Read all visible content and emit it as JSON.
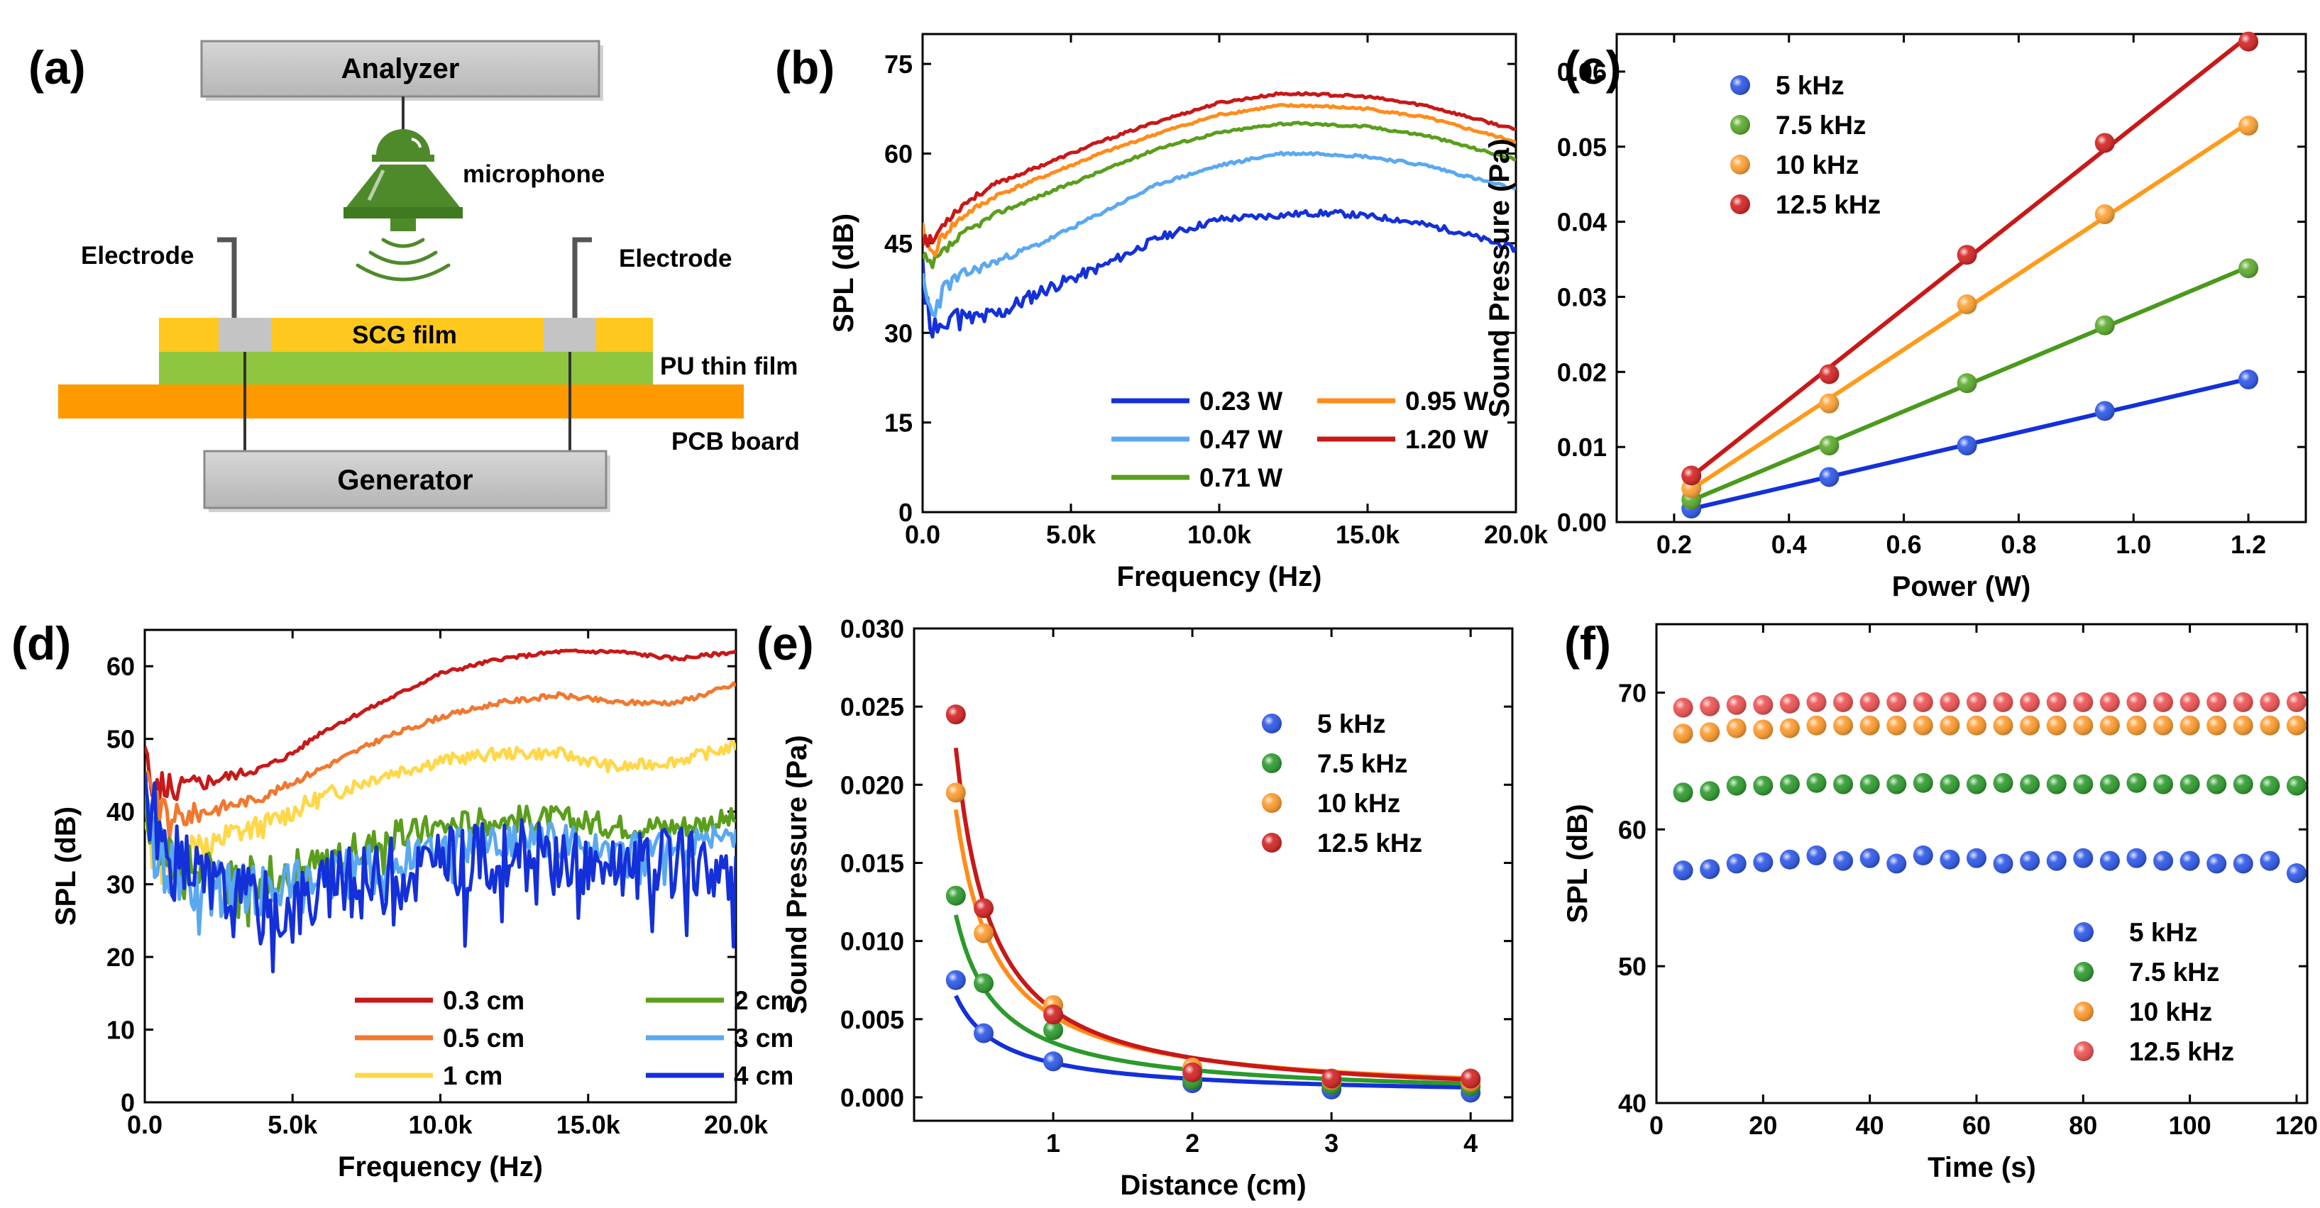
{
  "colors": {
    "blue_dark": "#1430d8",
    "blue_light": "#5aa8f0",
    "green": "#5a9e1c",
    "orange": "#ff8c1a",
    "red": "#c81818",
    "dot_blue": "#2a55e8",
    "dot_green": "#2a9a2a",
    "dot_orange": "#ff9a2a",
    "dot_red": "#d42020",
    "diag_gray": "#c4c4c4",
    "diag_yellow": "#ffc81e",
    "diag_green": "#8ec63f",
    "diag_orange": "#ff9900",
    "mic_green": "#4f8a2a"
  },
  "diagram": {
    "label": "(a)",
    "analyzer": "Analyzer",
    "microphone": "microphone",
    "electrode_left": "Electrode",
    "electrode_right": "Electrode",
    "scg_film": "SCG film",
    "pu_film": "PU thin film",
    "pcb": "PCB board",
    "generator": "Generator"
  },
  "chart_data": [
    {
      "id": "b",
      "label": "(b)",
      "type": "line",
      "xlabel": "Frequency (Hz)",
      "ylabel": "SPL (dB)",
      "xlim": [
        0,
        20000
      ],
      "ylim": [
        0,
        80
      ],
      "xticks": [
        0,
        5000,
        10000,
        15000,
        20000
      ],
      "xtick_labels": [
        "0.0",
        "5.0k",
        "10.0k",
        "15.0k",
        "20.0k"
      ],
      "yticks": [
        0,
        15,
        30,
        45,
        60,
        75
      ],
      "ytick_labels": [
        "0",
        "15",
        "30",
        "45",
        "60",
        "75"
      ],
      "legend_cols": 2,
      "series": [
        {
          "name": "0.23 W",
          "color": "#1430d8",
          "seed": 11,
          "noise": 2.4,
          "noise_decay": 3000,
          "base_noise": 0.5,
          "x": [
            0,
            300,
            800,
            1500,
            2500,
            4000,
            6000,
            8000,
            10000,
            11500,
            13000,
            14000,
            16000,
            18000,
            20000
          ],
          "y": [
            40,
            30,
            33,
            32,
            33,
            37,
            41,
            46,
            49,
            49.5,
            50,
            50,
            49,
            47,
            44
          ]
        },
        {
          "name": "0.47 W",
          "color": "#5aa8f0",
          "seed": 23,
          "noise": 2.0,
          "noise_decay": 1500,
          "base_noise": 0.25,
          "x": [
            0,
            300,
            800,
            1500,
            2500,
            4000,
            6000,
            8000,
            10000,
            12000,
            13500,
            15000,
            17000,
            20000
          ],
          "y": [
            38,
            33,
            38,
            40,
            42,
            45,
            50,
            55,
            58,
            60,
            60,
            59.5,
            58,
            54
          ]
        },
        {
          "name": "0.71 W",
          "color": "#5a9e1c",
          "seed": 37,
          "noise": 1.5,
          "noise_decay": 1200,
          "base_noise": 0.2,
          "x": [
            0,
            300,
            800,
            1500,
            2500,
            4000,
            6000,
            8000,
            10000,
            12000,
            13000,
            15000,
            17000,
            20000
          ],
          "y": [
            42,
            41,
            44,
            47,
            50,
            53,
            57,
            61,
            63.5,
            65,
            65,
            64.5,
            63,
            59
          ]
        },
        {
          "name": "0.95 W",
          "color": "#ff8c1a",
          "seed": 41,
          "noise": 1.3,
          "noise_decay": 1200,
          "base_noise": 0.2,
          "x": [
            0,
            300,
            800,
            1500,
            2500,
            4000,
            6000,
            8000,
            10000,
            12000,
            13000,
            15000,
            17000,
            20000
          ],
          "y": [
            47,
            43,
            47,
            50,
            53,
            56,
            60,
            63.5,
            66.5,
            68,
            68,
            67.5,
            66,
            62
          ]
        },
        {
          "name": "1.20 W",
          "color": "#c81818",
          "seed": 53,
          "noise": 1.2,
          "noise_decay": 1200,
          "base_noise": 0.2,
          "x": [
            0,
            300,
            800,
            1500,
            2500,
            4000,
            6000,
            8000,
            10000,
            12000,
            13000,
            15000,
            17000,
            20000
          ],
          "y": [
            46,
            45,
            49,
            52,
            55,
            58,
            62,
            65.5,
            68.5,
            70,
            70,
            69.5,
            68,
            64
          ]
        }
      ]
    },
    {
      "id": "c",
      "label": "(c)",
      "type": "scatter",
      "xlabel": "Power (W)",
      "ylabel": "Sound Pressure (Pa)",
      "xlim": [
        0.1,
        1.3
      ],
      "ylim": [
        0,
        0.065
      ],
      "xticks": [
        0.2,
        0.4,
        0.6,
        0.8,
        1.0,
        1.2
      ],
      "xtick_labels": [
        "0.2",
        "0.4",
        "0.6",
        "0.8",
        "1.0",
        "1.2"
      ],
      "yticks": [
        0,
        0.01,
        0.02,
        0.03,
        0.04,
        0.05,
        0.06
      ],
      "ytick_labels": [
        "0.00",
        "0.01",
        "0.02",
        "0.03",
        "0.04",
        "0.05",
        "0.06"
      ],
      "x": [
        0.23,
        0.47,
        0.71,
        0.95,
        1.2
      ],
      "series": [
        {
          "name": "5 kHz",
          "color": "#1430d8",
          "dot": "#2a55e8",
          "y": [
            0.0018,
            0.006,
            0.0102,
            0.0148,
            0.019
          ]
        },
        {
          "name": "7.5 kHz",
          "color": "#4a9a1c",
          "dot": "#5aaa2a",
          "y": [
            0.003,
            0.0102,
            0.0185,
            0.0262,
            0.0338
          ]
        },
        {
          "name": "10 kHz",
          "color": "#ff9a1a",
          "dot": "#ffa030",
          "y": [
            0.0045,
            0.0158,
            0.029,
            0.041,
            0.0528
          ]
        },
        {
          "name": "12.5 kHz",
          "color": "#c81818",
          "dot": "#d42020",
          "y": [
            0.0062,
            0.0197,
            0.0356,
            0.0505,
            0.064
          ]
        }
      ]
    },
    {
      "id": "d",
      "label": "(d)",
      "type": "line",
      "xlabel": "Frequency (Hz)",
      "ylabel": "SPL (dB)",
      "xlim": [
        0,
        20000
      ],
      "ylim": [
        0,
        65
      ],
      "xticks": [
        0,
        5000,
        10000,
        15000,
        20000
      ],
      "xtick_labels": [
        "0.0",
        "5.0k",
        "10.0k",
        "15.0k",
        "20.0k"
      ],
      "yticks": [
        0,
        10,
        20,
        30,
        40,
        50,
        60
      ],
      "ytick_labels": [
        "0",
        "10",
        "20",
        "30",
        "40",
        "50",
        "60"
      ],
      "legend_cols": 2,
      "series": [
        {
          "name": "0.3 cm",
          "color": "#c81818",
          "seed": 5,
          "noise": 3.5,
          "noise_decay": 1500,
          "base_noise": 0.25,
          "x": [
            0,
            500,
            1000,
            2000,
            3000,
            4000,
            5000,
            6000,
            8000,
            10000,
            12000,
            14000,
            16000,
            18000,
            20000
          ],
          "y": [
            46,
            44,
            43,
            44,
            45,
            46,
            48,
            51,
            55,
            59,
            61,
            62,
            62,
            61,
            62
          ]
        },
        {
          "name": "0.5 cm",
          "color": "#f07830",
          "seed": 9,
          "noise": 3.5,
          "noise_decay": 1500,
          "base_noise": 0.35,
          "x": [
            0,
            500,
            1000,
            2000,
            3000,
            4000,
            5000,
            6000,
            8000,
            10000,
            12000,
            14000,
            16000,
            18000,
            20000
          ],
          "y": [
            45,
            40,
            39,
            40,
            41,
            42,
            44,
            46,
            50,
            53,
            55,
            56,
            55,
            55,
            57.5
          ]
        },
        {
          "name": "1 cm",
          "color": "#ffd84a",
          "seed": 13,
          "noise": 3.0,
          "noise_decay": 3000,
          "base_noise": 0.8,
          "x": [
            0,
            500,
            1000,
            2000,
            3000,
            4000,
            5000,
            6000,
            8000,
            10000,
            12000,
            14000,
            16000,
            18000,
            20000
          ],
          "y": [
            38,
            33,
            33,
            35,
            37,
            38,
            40,
            42,
            45,
            47,
            48,
            48,
            46,
            47,
            49
          ]
        },
        {
          "name": "2 cm",
          "color": "#5a9e1c",
          "seed": 17,
          "noise": 2.5,
          "noise_decay": 10000,
          "base_noise": 1.2,
          "x": [
            0,
            500,
            1000,
            2000,
            3000,
            4000,
            5000,
            6000,
            8000,
            10000,
            12000,
            14000,
            16000,
            18000,
            20000
          ],
          "y": [
            40,
            35,
            33,
            32,
            31,
            31,
            32,
            33,
            36,
            38,
            39,
            39,
            38,
            38,
            39
          ]
        },
        {
          "name": "3 cm",
          "color": "#5aa8f0",
          "seed": 29,
          "noise": 3.0,
          "noise_decay": 10000,
          "base_noise": 1.6,
          "x": [
            0,
            500,
            1000,
            2000,
            3000,
            4000,
            5000,
            6000,
            8000,
            10000,
            12000,
            14000,
            16000,
            18000,
            20000
          ],
          "y": [
            38,
            34,
            32,
            30,
            29,
            29,
            30,
            31,
            33,
            35,
            36,
            36,
            35,
            35,
            37
          ]
        },
        {
          "name": "4 cm",
          "color": "#1430d8",
          "seed": 31,
          "noise": 4.0,
          "noise_decay": 100000,
          "base_noise": 1.5,
          "x": [
            0,
            500,
            1000,
            2000,
            3000,
            4000,
            5000,
            6000,
            8000,
            10000,
            12000,
            14000,
            16000,
            18000,
            20000
          ],
          "y": [
            44,
            36,
            33,
            30,
            28,
            27,
            27,
            29,
            31,
            33,
            34,
            34,
            33,
            33,
            32
          ]
        }
      ]
    },
    {
      "id": "e",
      "label": "(e)",
      "type": "scatter",
      "xlabel": "Distance (cm)",
      "ylabel": "Sound Pressure (Pa)",
      "xlim": [
        0,
        4.3
      ],
      "ylim": [
        -0.0015,
        0.03
      ],
      "xticks": [
        1,
        2,
        3,
        4
      ],
      "xtick_labels": [
        "1",
        "2",
        "3",
        "4"
      ],
      "yticks": [
        0,
        0.005,
        0.01,
        0.015,
        0.02,
        0.025,
        0.03
      ],
      "ytick_labels": [
        "0.000",
        "0.005",
        "0.010",
        "0.015",
        "0.020",
        "0.025",
        "0.030"
      ],
      "x": [
        0.3,
        0.5,
        1,
        2,
        3,
        4
      ],
      "series": [
        {
          "name": "5 kHz",
          "color": "#1430d8",
          "dot": "#2a55e8",
          "y": [
            0.0075,
            0.0041,
            0.0023,
            0.0009,
            0.0005,
            0.0003
          ],
          "fit": [
            0.0022,
            0.9
          ]
        },
        {
          "name": "7.5 kHz",
          "color": "#2a9a2a",
          "dot": "#2a9a2a",
          "y": [
            0.0129,
            0.0073,
            0.0043,
            0.0011,
            0.0008,
            0.0007
          ],
          "fit": [
            0.0035,
            1.0
          ]
        },
        {
          "name": "10 kHz",
          "color": "#ff8c1a",
          "dot": "#ff9a2a",
          "y": [
            0.0195,
            0.0105,
            0.0059,
            0.0019,
            0.0011,
            0.001
          ],
          "fit": [
            0.0052,
            1.05
          ]
        },
        {
          "name": "12.5 kHz",
          "color": "#c81818",
          "dot": "#d42020",
          "y": [
            0.0245,
            0.0121,
            0.0053,
            0.0016,
            0.0012,
            0.0012
          ],
          "fit": [
            0.0056,
            1.15
          ]
        }
      ]
    },
    {
      "id": "f",
      "label": "(f)",
      "type": "scatter",
      "xlabel": "Time (s)",
      "ylabel": "SPL (dB)",
      "xlim": [
        0,
        122
      ],
      "ylim": [
        40,
        75
      ],
      "xticks": [
        0,
        20,
        40,
        60,
        80,
        100,
        120
      ],
      "xtick_labels": [
        "0",
        "20",
        "40",
        "60",
        "80",
        "100",
        "120"
      ],
      "yticks": [
        40,
        50,
        60,
        70
      ],
      "ytick_labels": [
        "40",
        "50",
        "60",
        "70"
      ],
      "x": [
        5,
        10,
        15,
        20,
        25,
        30,
        35,
        40,
        45,
        50,
        55,
        60,
        65,
        70,
        75,
        80,
        85,
        90,
        95,
        100,
        105,
        110,
        115,
        120
      ],
      "series": [
        {
          "name": "5 kHz",
          "dot": "#2a55e8",
          "y": [
            57.0,
            57.1,
            57.5,
            57.6,
            57.8,
            58.1,
            57.7,
            57.9,
            57.5,
            58.1,
            57.8,
            57.9,
            57.5,
            57.7,
            57.7,
            57.9,
            57.7,
            57.9,
            57.7,
            57.7,
            57.5,
            57.5,
            57.7,
            56.8
          ]
        },
        {
          "name": "7.5 kHz",
          "dot": "#2a9a2a",
          "y": [
            62.7,
            62.8,
            63.2,
            63.2,
            63.3,
            63.4,
            63.3,
            63.3,
            63.3,
            63.4,
            63.3,
            63.3,
            63.4,
            63.3,
            63.3,
            63.3,
            63.3,
            63.4,
            63.3,
            63.3,
            63.3,
            63.3,
            63.2,
            63.2
          ]
        },
        {
          "name": "10 kHz",
          "dot": "#ff9a2a",
          "y": [
            67.0,
            67.1,
            67.4,
            67.3,
            67.4,
            67.6,
            67.6,
            67.6,
            67.6,
            67.6,
            67.6,
            67.6,
            67.6,
            67.6,
            67.6,
            67.6,
            67.6,
            67.6,
            67.6,
            67.6,
            67.6,
            67.6,
            67.6,
            67.6
          ]
        },
        {
          "name": "12.5 kHz",
          "dot": "#ee5050",
          "y": [
            68.9,
            69.0,
            69.1,
            69.1,
            69.2,
            69.3,
            69.3,
            69.3,
            69.3,
            69.3,
            69.3,
            69.3,
            69.3,
            69.3,
            69.3,
            69.3,
            69.3,
            69.3,
            69.3,
            69.3,
            69.3,
            69.3,
            69.3,
            69.3
          ]
        }
      ]
    }
  ]
}
